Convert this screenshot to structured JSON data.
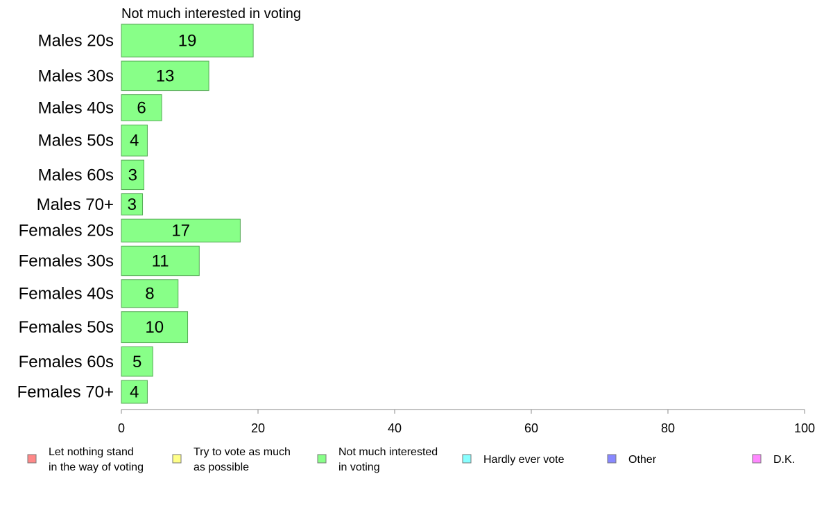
{
  "chart_data": {
    "type": "bar",
    "orientation": "horizontal",
    "title": "Not much interested in voting",
    "categories": [
      "Males 20s",
      "Males 30s",
      "Males 40s",
      "Males 50s",
      "Males 60s",
      "Males 70+",
      "Females 20s",
      "Females 30s",
      "Females 40s",
      "Females 50s",
      "Females 60s",
      "Females 70+"
    ],
    "group_size_weights": [
      1.0,
      0.9,
      0.8,
      0.95,
      0.9,
      0.65,
      0.7,
      0.9,
      0.85,
      0.95,
      0.9,
      0.7
    ],
    "series": [
      {
        "name": "Not much interested in voting",
        "color": "#88ff88",
        "values": [
          19.3,
          12.8,
          5.9,
          3.8,
          3.3,
          3.1,
          17.4,
          11.4,
          8.3,
          9.7,
          4.6,
          3.8
        ],
        "labels": [
          "19",
          "13",
          "6",
          "4",
          "3",
          "3",
          "17",
          "11",
          "8",
          "10",
          "5",
          "4"
        ]
      }
    ],
    "xlim": [
      0,
      100
    ],
    "xticks": [
      0,
      20,
      40,
      60,
      80,
      100
    ],
    "grid": false,
    "legend_position": "bottom"
  },
  "legend": [
    {
      "lines": [
        "Let nothing stand",
        "in the way of voting"
      ],
      "color": "#ff8888"
    },
    {
      "lines": [
        "Try to vote as much",
        "as possible"
      ],
      "color": "#ffff88"
    },
    {
      "lines": [
        "Not much interested",
        "in voting"
      ],
      "color": "#88ff88"
    },
    {
      "lines": [
        "Hardly ever vote"
      ],
      "color": "#88ffff"
    },
    {
      "lines": [
        "Other"
      ],
      "color": "#8888ff"
    },
    {
      "lines": [
        "D.K."
      ],
      "color": "#ff88ff"
    }
  ],
  "colors": {
    "bar_stroke": "#55aa55",
    "axis": "#888888"
  }
}
